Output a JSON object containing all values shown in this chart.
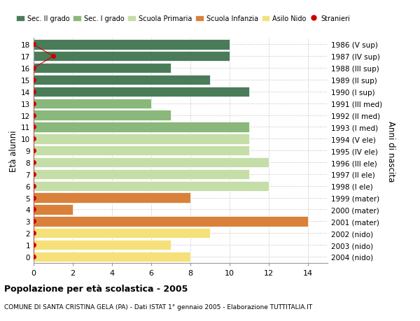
{
  "ages": [
    18,
    17,
    16,
    15,
    14,
    13,
    12,
    11,
    10,
    9,
    8,
    7,
    6,
    5,
    4,
    3,
    2,
    1,
    0
  ],
  "years": [
    "1986 (V sup)",
    "1987 (IV sup)",
    "1988 (III sup)",
    "1989 (II sup)",
    "1990 (I sup)",
    "1991 (III med)",
    "1992 (II med)",
    "1993 (I med)",
    "1994 (V ele)",
    "1995 (IV ele)",
    "1996 (III ele)",
    "1997 (II ele)",
    "1998 (I ele)",
    "1999 (mater)",
    "2000 (mater)",
    "2001 (mater)",
    "2002 (nido)",
    "2003 (nido)",
    "2004 (nido)"
  ],
  "values": [
    10,
    10,
    7,
    9,
    11,
    6,
    7,
    11,
    11,
    11,
    12,
    11,
    12,
    8,
    2,
    14,
    9,
    7,
    8
  ],
  "colors": [
    "#4a7c59",
    "#4a7c59",
    "#4a7c59",
    "#4a7c59",
    "#4a7c59",
    "#8ab87a",
    "#8ab87a",
    "#8ab87a",
    "#c5dea8",
    "#c5dea8",
    "#c5dea8",
    "#c5dea8",
    "#c5dea8",
    "#d9813a",
    "#d9813a",
    "#d9813a",
    "#f5e07a",
    "#f5e07a",
    "#f5e07a"
  ],
  "stranieri_x": [
    0,
    1,
    0,
    0,
    0,
    0,
    0,
    0,
    0,
    0,
    0,
    0,
    0,
    0,
    0,
    0,
    0,
    0,
    0
  ],
  "title_bold": "Popolazione per età scolastica - 2005",
  "subtitle": "COMUNE DI SANTA CRISTINA GELA (PA) - Dati ISTAT 1° gennaio 2005 - Elaborazione TUTTITALIA.IT",
  "ylabel": "Età alunni",
  "ylabel_right": "Anni di nascita",
  "xlim": [
    0,
    15
  ],
  "xticks": [
    0,
    2,
    4,
    6,
    8,
    10,
    12,
    14
  ],
  "legend_labels": [
    "Sec. II grado",
    "Sec. I grado",
    "Scuola Primaria",
    "Scuola Infanzia",
    "Asilo Nido",
    "Stranieri"
  ],
  "legend_colors": [
    "#4a7c59",
    "#8ab87a",
    "#c5dea8",
    "#d9813a",
    "#f5e07a",
    "#cc0000"
  ],
  "color_stranieri": "#cc0000",
  "bar_height": 0.85,
  "bg_color": "#ffffff",
  "grid_color": "#cccccc"
}
